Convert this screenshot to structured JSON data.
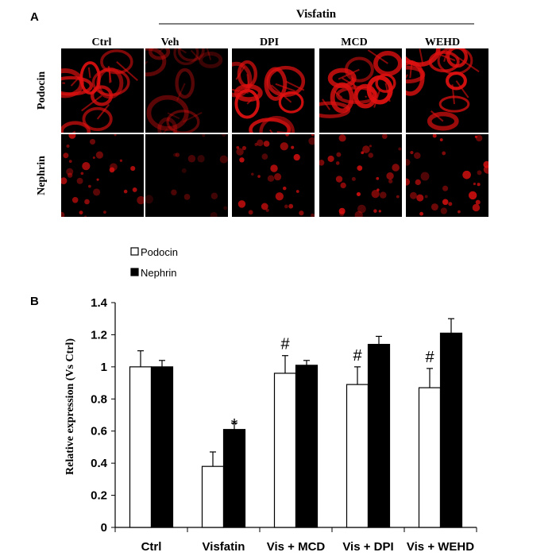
{
  "panel_a": {
    "label": "A",
    "treatment_label": "Visfatin",
    "columns": [
      "Ctrl",
      "Veh",
      "DPI",
      "MCD",
      "WEHD"
    ],
    "rows": [
      "Podocin",
      "Nephrin"
    ],
    "stain_color": "#e01010"
  },
  "panel_b": {
    "label": "B"
  },
  "chart_data": {
    "type": "bar",
    "categories": [
      "Ctrl",
      "Visfatin",
      "Vis + MCD",
      "Vis + DPI",
      "Vis + WEHD"
    ],
    "series": [
      {
        "name": "Podocin",
        "values": [
          1.0,
          0.38,
          0.96,
          0.89,
          0.87
        ],
        "errors": [
          0.1,
          0.09,
          0.11,
          0.11,
          0.12
        ],
        "color": "#ffffff"
      },
      {
        "name": "Nephrin",
        "values": [
          1.0,
          0.61,
          1.01,
          1.14,
          1.21
        ],
        "errors": [
          0.04,
          0.04,
          0.03,
          0.05,
          0.09
        ],
        "color": "#000000"
      }
    ],
    "annotations": [
      [
        "",
        "",
        "#",
        "#",
        "#"
      ],
      [
        "",
        "*",
        "#",
        "#",
        "#"
      ],
      [
        "",
        "*",
        "",
        "",
        ""
      ]
    ],
    "ylabel": "Relative expression (Vs Ctrl)",
    "xlabel": "",
    "ylim": [
      0,
      1.4
    ],
    "yticks": [
      "0",
      "0.2",
      "0.4",
      "0.6",
      "0.8",
      "1",
      "1.2",
      "1.4"
    ],
    "legend_placement": "top-left",
    "grid": false
  }
}
